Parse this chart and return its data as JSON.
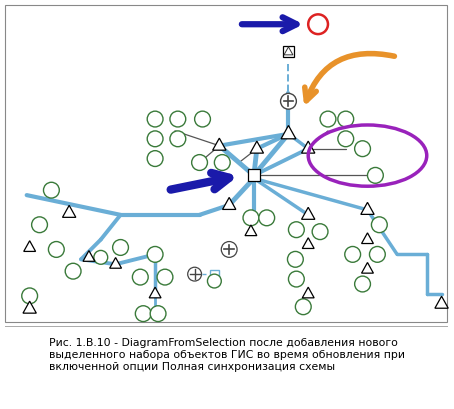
{
  "bg_color": "#ffffff",
  "border_color": "#888888",
  "node_circle_ec": "#3a7a3a",
  "node_circle_fc": "#ffffff",
  "line_blue": "#6aaed6",
  "line_black": "#555555",
  "line_dashed_blue": "#6aaed6",
  "arrow_dark_blue": "#1a1aaa",
  "arrow_orange": "#e8922a",
  "ellipse_purple": "#9922bb",
  "highlight_red": "#dd2222",
  "caption": "Рис. 1.B.10 - DiagramFromSelection после добавления нового\nвыделенного набора объектов ГИС во время обновления при\nвключенной опции Полная синхронизация схемы",
  "caption_fontsize": 7.8,
  "figsize": [
    4.54,
    4.09
  ],
  "dpi": 100
}
